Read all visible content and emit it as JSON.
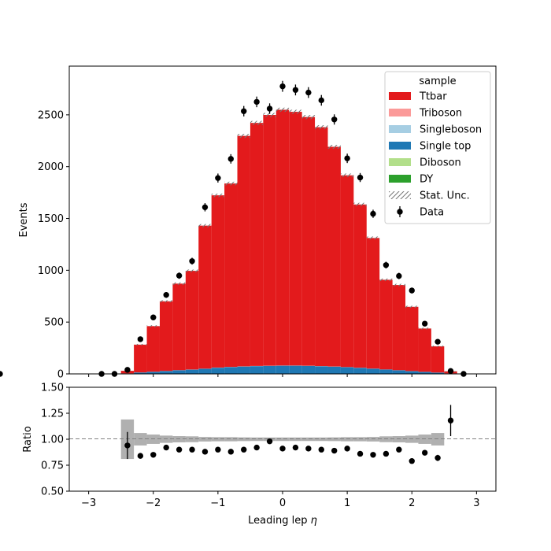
{
  "chart_data": {
    "type": "bar",
    "subtype": "stacked-histogram-with-ratio",
    "bin_edges": [
      -2.9,
      -2.7,
      -2.5,
      -2.3,
      -2.1,
      -1.9,
      -1.7,
      -1.5,
      -1.3,
      -1.1,
      -0.9,
      -0.7,
      -0.5,
      -0.3,
      -0.1,
      0.1,
      0.3,
      0.5,
      0.7,
      0.9,
      1.1,
      1.3,
      1.5,
      1.7,
      1.9,
      2.1,
      2.3,
      2.5,
      2.7,
      2.9
    ],
    "xlabel": "Leading lep $\\eta$",
    "xlabel_text": "Leading lep ",
    "xlabel_symbol": "η",
    "xlim": [
      -3.3,
      3.3
    ],
    "xticks": [
      -3,
      -2,
      -1,
      0,
      1,
      2,
      3
    ],
    "xtick_labels": [
      "−3",
      "−2",
      "−1",
      "0",
      "1",
      "2",
      "3"
    ],
    "main": {
      "ylabel": "Events",
      "ylim": [
        0,
        2970
      ],
      "yticks": [
        0,
        500,
        1000,
        1500,
        2000,
        2500
      ],
      "ytick_labels": [
        "0",
        "500",
        "1000",
        "1500",
        "2000",
        "2500"
      ]
    },
    "series": [
      {
        "name": "DY",
        "color": "#2ca02c",
        "values": [
          0,
          0,
          0.2,
          0.5,
          0.7,
          0.8,
          1,
          1,
          1,
          1.2,
          1.2,
          1.3,
          1.3,
          1.3,
          1.3,
          1.3,
          1.3,
          1.2,
          1.2,
          1.1,
          1,
          1,
          1,
          0.9,
          0.8,
          0.6,
          0.4,
          0.2,
          0,
          0
        ]
      },
      {
        "name": "Diboson",
        "color": "#b2df8a",
        "values": [
          0,
          0,
          0.3,
          1,
          1.3,
          1.6,
          1.8,
          2,
          2.2,
          2.4,
          2.5,
          2.6,
          2.6,
          2.7,
          2.7,
          2.7,
          2.6,
          2.5,
          2.5,
          2.3,
          2.2,
          2,
          1.8,
          1.6,
          1.4,
          1.2,
          0.9,
          0.3,
          0,
          0
        ]
      },
      {
        "name": "Single top",
        "color": "#1f78b4",
        "values": [
          0,
          0,
          4,
          12,
          18,
          25,
          32,
          38,
          46,
          56,
          62,
          67,
          71,
          73,
          75,
          75,
          73,
          70,
          66,
          61,
          55,
          47,
          39,
          32,
          24,
          17,
          11,
          4,
          0,
          0
        ]
      },
      {
        "name": "Singleboson",
        "color": "#a6cee3",
        "values": [
          0,
          0,
          0.3,
          0.6,
          0.9,
          1,
          1.2,
          1.3,
          1.4,
          1.5,
          1.6,
          1.6,
          1.7,
          1.7,
          1.7,
          1.7,
          1.7,
          1.6,
          1.6,
          1.5,
          1.4,
          1.3,
          1.2,
          1.1,
          1,
          0.9,
          0.6,
          0.3,
          0,
          0
        ]
      },
      {
        "name": "Triboson",
        "color": "#fb9a99",
        "values": [
          0,
          0,
          0,
          0.1,
          0.1,
          0.1,
          0.1,
          0.1,
          0.1,
          0.1,
          0.1,
          0.1,
          0.1,
          0.1,
          0.1,
          0.1,
          0.1,
          0.1,
          0.1,
          0.1,
          0.1,
          0.1,
          0.1,
          0.1,
          0.1,
          0.1,
          0.1,
          0,
          0,
          0
        ]
      },
      {
        "name": "Ttbar",
        "color": "#e31a1c",
        "values": [
          0,
          0,
          25,
          268,
          440,
          672,
          835,
          952,
          1380,
          1662,
          1770,
          2224,
          2345,
          2420,
          2468,
          2448,
          2400,
          2305,
          2120,
          1850,
          1575,
          1260,
          865,
          822,
          620,
          418,
          253,
          20,
          0,
          0
        ]
      }
    ],
    "data_points": {
      "name": "Data",
      "color": "#000000",
      "values": [
        0,
        0,
        39,
        335,
        545,
        762,
        948,
        1088,
        1608,
        1890,
        2075,
        2535,
        2625,
        2560,
        2775,
        2740,
        2715,
        2640,
        2455,
        2080,
        1895,
        1545,
        1050,
        945,
        805,
        485,
        310,
        28,
        0,
        0
      ]
    },
    "ratio": {
      "ylabel": "Ratio",
      "ylim": [
        0.5,
        1.5
      ],
      "yticks": [
        0.5,
        0.75,
        1.0,
        1.25,
        1.5
      ],
      "ytick_labels": [
        "0.50",
        "0.75",
        "1.00",
        "1.25",
        "1.50"
      ],
      "reference": 1.0,
      "values": [
        null,
        null,
        0.94,
        0.84,
        0.85,
        0.92,
        0.9,
        0.9,
        0.88,
        0.9,
        0.88,
        0.9,
        0.92,
        0.98,
        0.91,
        0.92,
        0.91,
        0.9,
        0.89,
        0.91,
        0.86,
        0.85,
        0.86,
        0.9,
        0.79,
        0.87,
        0.82,
        1.18,
        null,
        null
      ],
      "errors": [
        null,
        null,
        0.13,
        0.02,
        0.02,
        0.015,
        0.015,
        0.015,
        0.012,
        0.012,
        0.012,
        0.01,
        0.01,
        0.01,
        0.01,
        0.01,
        0.01,
        0.01,
        0.01,
        0.012,
        0.012,
        0.012,
        0.015,
        0.015,
        0.02,
        0.02,
        0.03,
        0.15,
        null,
        null
      ],
      "unc_band": [
        null,
        null,
        0.19,
        0.06,
        0.045,
        0.035,
        0.03,
        0.028,
        0.022,
        0.02,
        0.02,
        0.018,
        0.017,
        0.017,
        0.017,
        0.017,
        0.017,
        0.017,
        0.018,
        0.02,
        0.02,
        0.022,
        0.028,
        0.03,
        0.035,
        0.045,
        0.06,
        null,
        null,
        null
      ]
    },
    "legend": {
      "title": "sample",
      "placement": "top-right",
      "entries": [
        {
          "label": "Ttbar",
          "kind": "patch",
          "color": "#e31a1c"
        },
        {
          "label": "Triboson",
          "kind": "patch",
          "color": "#fb9a99"
        },
        {
          "label": "Singleboson",
          "kind": "patch",
          "color": "#a6cee3"
        },
        {
          "label": "Single top",
          "kind": "patch",
          "color": "#1f78b4"
        },
        {
          "label": "Diboson",
          "kind": "patch",
          "color": "#b2df8a"
        },
        {
          "label": "DY",
          "kind": "patch",
          "color": "#2ca02c"
        },
        {
          "label": "Stat. Unc.",
          "kind": "hatch",
          "color": "#777777"
        },
        {
          "label": "Data",
          "kind": "marker",
          "color": "#000000"
        }
      ]
    },
    "grid": false
  }
}
